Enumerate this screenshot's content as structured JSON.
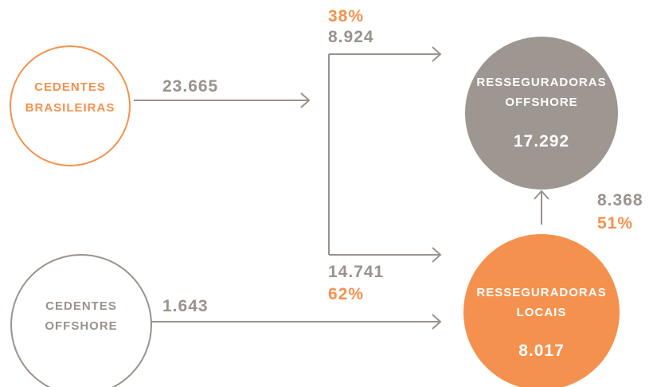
{
  "nodes": [
    {
      "label": [
        "CEDENTES",
        "BRASILEIRAS"
      ]
    },
    {
      "label": [
        "CEDENTES",
        "OFFSHORE"
      ]
    },
    {
      "label": [
        "RESSEGURADORAS",
        "OFFSHORE"
      ],
      "value": "17.292"
    },
    {
      "label": [
        "RESSEGURADORAS",
        "LOCAIS"
      ],
      "value": "8.017"
    }
  ],
  "edges": [
    {
      "value": "23.665"
    },
    {
      "value": "8.924",
      "share": "38%"
    },
    {
      "value": "14.741",
      "share": "62%"
    },
    {
      "value": "1.643"
    },
    {
      "value": "8.368",
      "share": "51%"
    }
  ]
}
